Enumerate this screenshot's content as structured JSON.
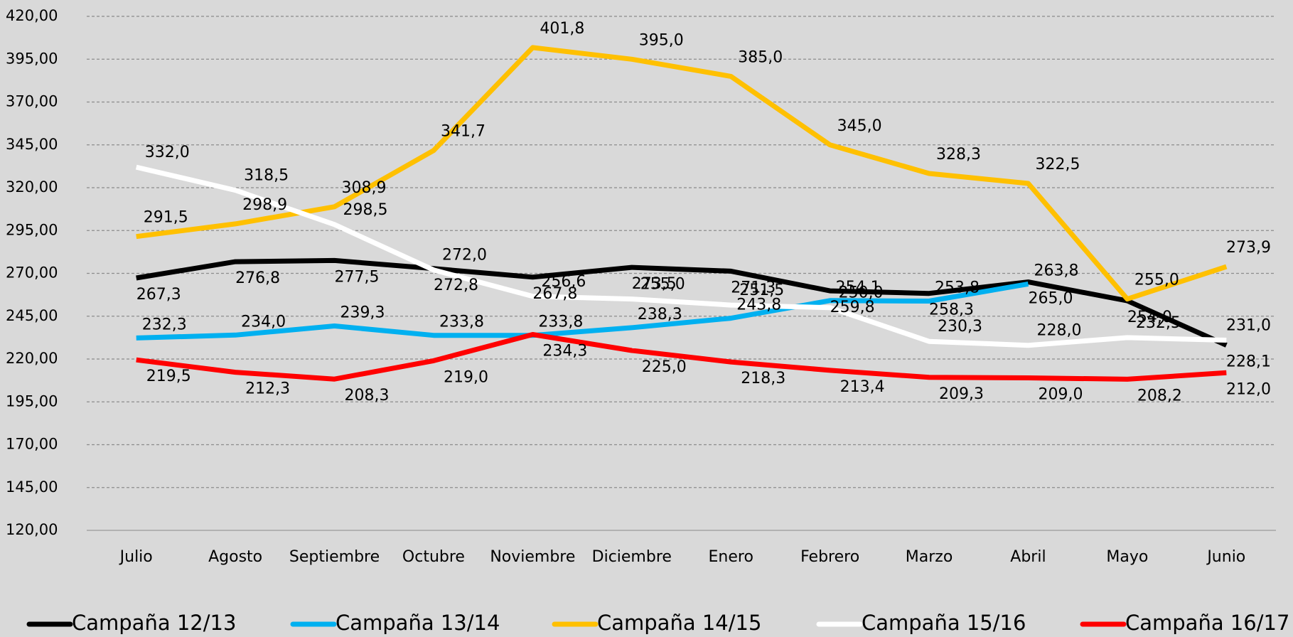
{
  "chart_data": {
    "type": "line",
    "categories": [
      "Julio",
      "Agosto",
      "Septiembre",
      "Octubre",
      "Noviembre",
      "Diciembre",
      "Enero",
      "Febrero",
      "Marzo",
      "Abril",
      "Mayo",
      "Junio"
    ],
    "ylim": [
      120,
      420
    ],
    "yticks": [
      {
        "value": 120,
        "label": "120,00"
      },
      {
        "value": 145,
        "label": "145,00"
      },
      {
        "value": 170,
        "label": "170,00"
      },
      {
        "value": 195,
        "label": "195,00"
      },
      {
        "value": 220,
        "label": "220,00"
      },
      {
        "value": 245,
        "label": "245,00"
      },
      {
        "value": 270,
        "label": "270,00"
      },
      {
        "value": 295,
        "label": "295,00"
      },
      {
        "value": 320,
        "label": "320,00"
      },
      {
        "value": 345,
        "label": "345,00"
      },
      {
        "value": 370,
        "label": "370,00"
      },
      {
        "value": 395,
        "label": "395,00"
      },
      {
        "value": 420,
        "label": "420,00"
      }
    ],
    "grid": true,
    "legend": "bottom",
    "series": [
      {
        "name": "Campaña 12/13",
        "color": "#000000",
        "values": [
          267.3,
          276.8,
          277.5,
          272.8,
          267.8,
          273.5,
          271.3,
          259.8,
          258.3,
          265.0,
          254.0,
          228.1
        ],
        "value_labels": [
          "267,3",
          "276,8",
          "277,5",
          "272,8",
          "267,8",
          "273,5",
          "271,3",
          "259,8",
          "258,3",
          "265,0",
          "254,0",
          "228,1"
        ]
      },
      {
        "name": "Campaña 13/14",
        "color": "#00b0f0",
        "values": [
          232.3,
          234.0,
          239.3,
          233.8,
          233.8,
          238.3,
          243.8,
          254.1,
          253.8,
          263.8,
          null,
          null
        ],
        "value_labels": [
          "232,3",
          "234,0",
          "239,3",
          "233,8",
          "233,8",
          "238,3",
          "243,8",
          "254,1",
          "253,8",
          "263,8",
          null,
          null
        ]
      },
      {
        "name": "Campaña 14/15",
        "color": "#ffc000",
        "values": [
          291.5,
          298.9,
          308.9,
          341.7,
          401.8,
          395.0,
          385.0,
          345.0,
          328.3,
          322.5,
          255.0,
          273.9
        ],
        "value_labels": [
          "291,5",
          "298,9",
          "308,9",
          "341,7",
          "401,8",
          "395,0",
          "385,0",
          "345,0",
          "328,3",
          "322,5",
          "255,0",
          "273,9"
        ]
      },
      {
        "name": "Campaña 15/16",
        "color": "#ffffff",
        "values": [
          332.0,
          318.5,
          298.5,
          272.0,
          256.6,
          255.0,
          251.5,
          250.0,
          230.3,
          228.0,
          232.5,
          231.0
        ],
        "value_labels": [
          "332,0",
          "318,5",
          "298,5",
          "272,0",
          "256,6",
          "255,0",
          "251,5",
          "250,0",
          "230,3",
          "228,0",
          "232,5",
          "231,0"
        ]
      },
      {
        "name": "Campaña 16/17",
        "color": "#ff0000",
        "values": [
          219.5,
          212.3,
          208.3,
          219.0,
          234.3,
          225.0,
          218.3,
          213.4,
          209.3,
          209.0,
          208.2,
          212.0
        ],
        "value_labels": [
          "219,5",
          "212,3",
          "208,3",
          "219,0",
          "234,3",
          "225,0",
          "218,3",
          "213,4",
          "209,3",
          "209,0",
          "208,2",
          "212,0"
        ]
      }
    ]
  }
}
